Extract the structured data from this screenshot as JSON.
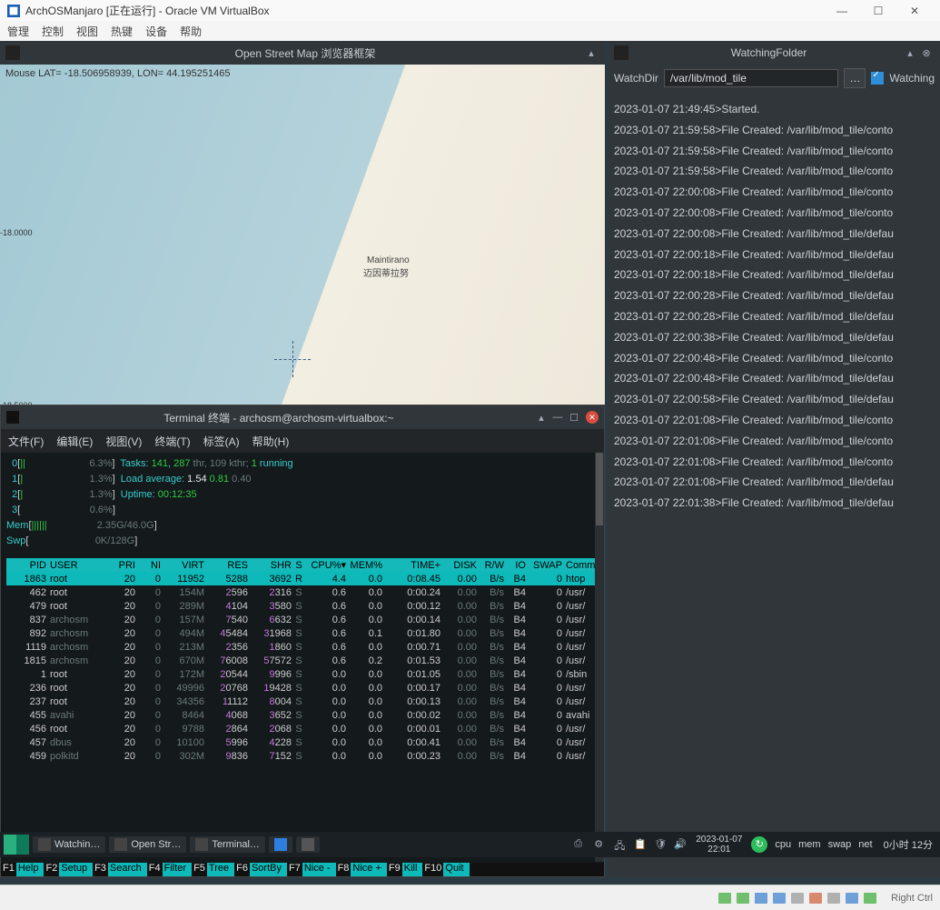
{
  "vbox": {
    "title": "ArchOSManjaro [正在运行] - Oracle VM VirtualBox",
    "menu": [
      "管理",
      "控制",
      "视图",
      "热键",
      "设备",
      "帮助"
    ],
    "ctrl_min": "—",
    "ctrl_max": "☐",
    "ctrl_close": "✕",
    "status_right": "Right Ctrl"
  },
  "map": {
    "title": "Open Street Map 浏览器框架",
    "coord": "Mouse LAT= -18.506958939,  LON=  44.195251465",
    "lat1": "-18.0000",
    "lat2": "-18.5000",
    "city1": "Maintirano",
    "city2": "迈因蒂拉努"
  },
  "watch": {
    "title": "WatchingFolder",
    "label": "WatchDir",
    "path": "/var/lib/mod_tile",
    "chk_label": "Watching",
    "log": [
      "2023-01-07 21:49:45>Started.",
      "2023-01-07 21:59:58>File Created: /var/lib/mod_tile/conto",
      "2023-01-07 21:59:58>File Created: /var/lib/mod_tile/conto",
      "2023-01-07 21:59:58>File Created: /var/lib/mod_tile/conto",
      "2023-01-07 22:00:08>File Created: /var/lib/mod_tile/conto",
      "2023-01-07 22:00:08>File Created: /var/lib/mod_tile/conto",
      "2023-01-07 22:00:08>File Created: /var/lib/mod_tile/defau",
      "2023-01-07 22:00:18>File Created: /var/lib/mod_tile/defau",
      "2023-01-07 22:00:18>File Created: /var/lib/mod_tile/defau",
      "2023-01-07 22:00:28>File Created: /var/lib/mod_tile/defau",
      "2023-01-07 22:00:28>File Created: /var/lib/mod_tile/defau",
      "2023-01-07 22:00:38>File Created: /var/lib/mod_tile/defau",
      "2023-01-07 22:00:48>File Created: /var/lib/mod_tile/conto",
      "2023-01-07 22:00:48>File Created: /var/lib/mod_tile/defau",
      "2023-01-07 22:00:58>File Created: /var/lib/mod_tile/defau",
      "2023-01-07 22:01:08>File Created: /var/lib/mod_tile/conto",
      "2023-01-07 22:01:08>File Created: /var/lib/mod_tile/conto",
      "2023-01-07 22:01:08>File Created: /var/lib/mod_tile/conto",
      "2023-01-07 22:01:08>File Created: /var/lib/mod_tile/defau",
      "2023-01-07 22:01:38>File Created: /var/lib/mod_tile/defau"
    ]
  },
  "term": {
    "title": "Terminal 终端 - archosm@archosm-virtualbox:~",
    "menu": [
      "文件(F)",
      "编辑(E)",
      "视图(V)",
      "终端(T)",
      "标签(A)",
      "帮助(H)"
    ]
  },
  "htop": {
    "cpus": [
      {
        "n": "0",
        "bar": "||",
        "pct": "6.3%"
      },
      {
        "n": "1",
        "bar": "|",
        "pct": "1.3%"
      },
      {
        "n": "2",
        "bar": "|",
        "pct": "1.3%"
      },
      {
        "n": "3",
        "bar": "",
        "pct": "0.6%"
      }
    ],
    "mem_bar": "||||||",
    "mem_txt": "2.35G/46.0G",
    "swp_bar": "",
    "swp_txt": "0K/128G",
    "tasks_l": "Tasks: ",
    "tasks_n": "141",
    "tasks_c": ", ",
    "tasks_thr": "287",
    "tasks_t": " thr, ",
    "tasks_k": "109",
    "tasks_kt": " kthr; ",
    "tasks_r": "1",
    "tasks_run": " running",
    "load_l": "Load average: ",
    "load1": "1.54",
    "load2": "0.81",
    "load3": "0.40",
    "uptime_l": "Uptime: ",
    "uptime": "00:12:35",
    "header": [
      "PID",
      "USER",
      "PRI",
      "NI",
      "VIRT",
      "RES",
      "SHR",
      "S",
      "CPU%▾",
      "MEM%",
      "TIME+",
      "DISK",
      "R/W",
      "IO",
      "SWAP",
      "Comma"
    ],
    "rows": [
      {
        "pid": "1863",
        "usr": "root",
        "pri": "20",
        "ni": "0",
        "virt": "11952",
        "res": "5288",
        "shr": "3692",
        "s": "R",
        "cpu": "4.4",
        "mem": "0.0",
        "time": "0:08.45",
        "disk": "0.00",
        "rw": "B/s",
        "io": "B4",
        "swap": "0",
        "cmd": "htop",
        "sel": true
      },
      {
        "pid": "462",
        "usr": "root",
        "pri": "20",
        "ni": "0",
        "virt": "154M",
        "res": "2596",
        "shr": "2316",
        "s": "S",
        "cpu": "0.6",
        "mem": "0.0",
        "time": "0:00.24",
        "disk": "0.00",
        "rw": "B/s",
        "io": "B4",
        "swap": "0",
        "cmd": "/usr/"
      },
      {
        "pid": "479",
        "usr": "root",
        "pri": "20",
        "ni": "0",
        "virt": "289M",
        "res": "4104",
        "shr": "3580",
        "s": "S",
        "cpu": "0.6",
        "mem": "0.0",
        "time": "0:00.12",
        "disk": "0.00",
        "rw": "B/s",
        "io": "B4",
        "swap": "0",
        "cmd": "/usr/"
      },
      {
        "pid": "837",
        "usr": "archosm",
        "pri": "20",
        "ni": "0",
        "virt": "157M",
        "res": "7540",
        "shr": "6632",
        "s": "S",
        "cpu": "0.6",
        "mem": "0.0",
        "time": "0:00.14",
        "disk": "0.00",
        "rw": "B/s",
        "io": "B4",
        "swap": "0",
        "cmd": "/usr/"
      },
      {
        "pid": "892",
        "usr": "archosm",
        "pri": "20",
        "ni": "0",
        "virt": "494M",
        "res": "45484",
        "shr": "31968",
        "s": "S",
        "cpu": "0.6",
        "mem": "0.1",
        "time": "0:01.80",
        "disk": "0.00",
        "rw": "B/s",
        "io": "B4",
        "swap": "0",
        "cmd": "/usr/"
      },
      {
        "pid": "1119",
        "usr": "archosm",
        "pri": "20",
        "ni": "0",
        "virt": "213M",
        "res": "2356",
        "shr": "1860",
        "s": "S",
        "cpu": "0.6",
        "mem": "0.0",
        "time": "0:00.71",
        "disk": "0.00",
        "rw": "B/s",
        "io": "B4",
        "swap": "0",
        "cmd": "/usr/"
      },
      {
        "pid": "1815",
        "usr": "archosm",
        "pri": "20",
        "ni": "0",
        "virt": "670M",
        "res": "76008",
        "shr": "57572",
        "s": "S",
        "cpu": "0.6",
        "mem": "0.2",
        "time": "0:01.53",
        "disk": "0.00",
        "rw": "B/s",
        "io": "B4",
        "swap": "0",
        "cmd": "/usr/"
      },
      {
        "pid": "1",
        "usr": "root",
        "pri": "20",
        "ni": "0",
        "virt": "172M",
        "res": "20544",
        "shr": "9996",
        "s": "S",
        "cpu": "0.0",
        "mem": "0.0",
        "time": "0:01.05",
        "disk": "0.00",
        "rw": "B/s",
        "io": "B4",
        "swap": "0",
        "cmd": "/sbin"
      },
      {
        "pid": "236",
        "usr": "root",
        "pri": "20",
        "ni": "0",
        "virt": "49996",
        "res": "20768",
        "shr": "19428",
        "s": "S",
        "cpu": "0.0",
        "mem": "0.0",
        "time": "0:00.17",
        "disk": "0.00",
        "rw": "B/s",
        "io": "B4",
        "swap": "0",
        "cmd": "/usr/"
      },
      {
        "pid": "237",
        "usr": "root",
        "pri": "20",
        "ni": "0",
        "virt": "34356",
        "res": "11112",
        "shr": "8004",
        "s": "S",
        "cpu": "0.0",
        "mem": "0.0",
        "time": "0:00.13",
        "disk": "0.00",
        "rw": "B/s",
        "io": "B4",
        "swap": "0",
        "cmd": "/usr/"
      },
      {
        "pid": "455",
        "usr": "avahi",
        "pri": "20",
        "ni": "0",
        "virt": "8464",
        "res": "4068",
        "shr": "3652",
        "s": "S",
        "cpu": "0.0",
        "mem": "0.0",
        "time": "0:00.02",
        "disk": "0.00",
        "rw": "B/s",
        "io": "B4",
        "swap": "0",
        "cmd": "avahi"
      },
      {
        "pid": "456",
        "usr": "root",
        "pri": "20",
        "ni": "0",
        "virt": "9788",
        "res": "2864",
        "shr": "2068",
        "s": "S",
        "cpu": "0.0",
        "mem": "0.0",
        "time": "0:00.01",
        "disk": "0.00",
        "rw": "B/s",
        "io": "B4",
        "swap": "0",
        "cmd": "/usr/"
      },
      {
        "pid": "457",
        "usr": "dbus",
        "pri": "20",
        "ni": "0",
        "virt": "10100",
        "res": "5996",
        "shr": "4228",
        "s": "S",
        "cpu": "0.0",
        "mem": "0.0",
        "time": "0:00.41",
        "disk": "0.00",
        "rw": "B/s",
        "io": "B4",
        "swap": "0",
        "cmd": "/usr/"
      },
      {
        "pid": "459",
        "usr": "polkitd",
        "pri": "20",
        "ni": "0",
        "virt": "302M",
        "res": "9836",
        "shr": "7152",
        "s": "S",
        "cpu": "0.0",
        "mem": "0.0",
        "time": "0:00.23",
        "disk": "0.00",
        "rw": "B/s",
        "io": "B4",
        "swap": "0",
        "cmd": "/usr/"
      }
    ],
    "fn": [
      [
        "F1",
        "Help"
      ],
      [
        "F2",
        "Setup"
      ],
      [
        "F3",
        "Search"
      ],
      [
        "F4",
        "Filter"
      ],
      [
        "F5",
        "Tree"
      ],
      [
        "F6",
        "SortBy"
      ],
      [
        "F7",
        "Nice -"
      ],
      [
        "F8",
        "Nice +"
      ],
      [
        "F9",
        "Kill"
      ],
      [
        "F10",
        "Quit"
      ]
    ]
  },
  "taskbar": {
    "items": [
      "Watchin…",
      "Open Str…",
      "Terminal…"
    ],
    "clock_date": "2023-01-07",
    "clock_time": "22:01",
    "mon": [
      "cpu",
      "mem",
      "swap",
      "net"
    ],
    "extra": "0小时 12分"
  }
}
